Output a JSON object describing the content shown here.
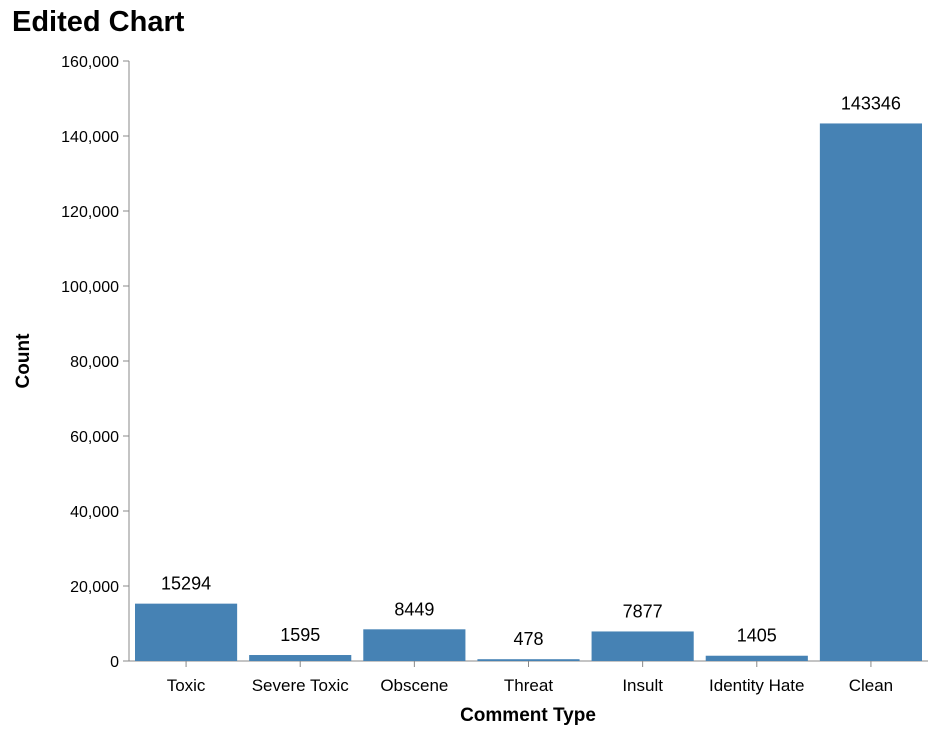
{
  "chart_data": {
    "type": "bar",
    "title": "Edited Chart",
    "xlabel": "Comment Type",
    "ylabel": "Count",
    "categories": [
      "Toxic",
      "Severe Toxic",
      "Obscene",
      "Threat",
      "Insult",
      "Identity Hate",
      "Clean"
    ],
    "values": [
      15294,
      1595,
      8449,
      478,
      7877,
      1405,
      143346
    ],
    "data_labels": [
      "15294",
      "1595",
      "8449",
      "478",
      "7877",
      "1405",
      "143346"
    ],
    "ylim": [
      0,
      160000
    ],
    "yticks": [
      0,
      20000,
      40000,
      60000,
      80000,
      100000,
      120000,
      140000,
      160000
    ],
    "ytick_labels": [
      "0",
      "20,000",
      "40,000",
      "60,000",
      "80,000",
      "100,000",
      "120,000",
      "140,000",
      "160,000"
    ],
    "grid": false,
    "legend": "none",
    "colors": {
      "bar": "#4682b4",
      "axis": "#888888",
      "text": "#000000"
    }
  }
}
